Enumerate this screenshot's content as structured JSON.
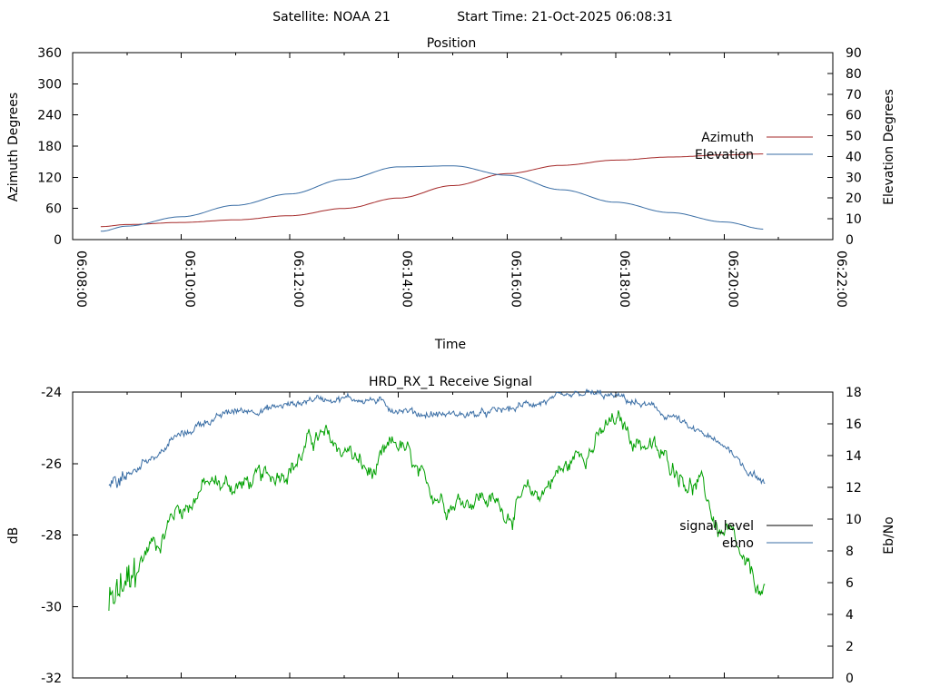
{
  "header": {
    "satellite": "Satellite: NOAA 21",
    "start_time": "Start Time: 21-Oct-2025 06:08:31"
  },
  "colors": {
    "azimuth": "#a52a2a",
    "elevation": "#3a6ea5",
    "signal_level": "#000000",
    "signal_trace": "#00a000",
    "ebno": "#3a6ea5"
  },
  "chart_data": [
    {
      "type": "line",
      "title": "Position",
      "xlabel": "Time",
      "ylabel": "Azimuth Degrees",
      "y2label": "Elevation Degrees",
      "xlim": [
        "06:08:00",
        "06:22:00"
      ],
      "ylim": [
        0,
        360
      ],
      "y2lim": [
        0,
        90
      ],
      "x_ticks": [
        "06:08:00",
        "06:10:00",
        "06:12:00",
        "06:14:00",
        "06:16:00",
        "06:18:00",
        "06:20:00",
        "06:22:00"
      ],
      "y_ticks": [
        "0",
        "60",
        "120",
        "180",
        "240",
        "300",
        "360"
      ],
      "y2_ticks": [
        "0",
        "10",
        "20",
        "30",
        "40",
        "50",
        "60",
        "70",
        "80",
        "90"
      ],
      "legend_position": "right",
      "x_time": [
        "06:08:31",
        "06:09:00",
        "06:10:00",
        "06:11:00",
        "06:12:00",
        "06:13:00",
        "06:14:00",
        "06:15:00",
        "06:16:00",
        "06:17:00",
        "06:18:00",
        "06:19:00",
        "06:20:00",
        "06:20:45"
      ],
      "series": [
        {
          "name": "Azimuth",
          "axis": "y",
          "values": [
            25,
            29,
            33,
            38,
            46,
            60,
            80,
            104,
            127,
            143,
            153,
            159,
            163,
            165
          ]
        },
        {
          "name": "Elevation",
          "axis": "y2",
          "values": [
            4,
            6.5,
            11,
            16.5,
            22,
            29,
            35,
            35.5,
            31,
            24,
            18,
            13,
            8.5,
            5
          ]
        }
      ]
    },
    {
      "type": "line",
      "title": "HRD_RX_1 Receive Signal",
      "ylabel": "dB",
      "y2label": "Eb/No",
      "ylim": [
        -32,
        -24
      ],
      "y2lim": [
        0,
        18
      ],
      "y_ticks": [
        "-32",
        "-30",
        "-28",
        "-26",
        "-24"
      ],
      "y2_ticks": [
        "0",
        "2",
        "4",
        "6",
        "8",
        "10",
        "12",
        "14",
        "16",
        "18"
      ],
      "x_tick_count": 7,
      "legend_position": "right",
      "x_range": [
        "06:08:00",
        "06:22:00"
      ],
      "x_time": [
        "06:08:40",
        "06:09:00",
        "06:09:30",
        "06:10:00",
        "06:10:30",
        "06:11:00",
        "06:11:30",
        "06:12:00",
        "06:12:30",
        "06:13:00",
        "06:13:30",
        "06:14:00",
        "06:14:30",
        "06:15:00",
        "06:15:30",
        "06:16:00",
        "06:16:30",
        "06:17:00",
        "06:17:30",
        "06:18:00",
        "06:18:30",
        "06:19:00",
        "06:19:30",
        "06:20:00",
        "06:20:30",
        "06:20:45"
      ],
      "series": [
        {
          "name": "signal_level",
          "axis": "y",
          "values": [
            -30,
            -29.4,
            -28.2,
            -27.2,
            -26.6,
            -26.6,
            -26.5,
            -26.0,
            -25.3,
            -25.6,
            -26.3,
            -25.5,
            -26.7,
            -27.0,
            -26.9,
            -27.3,
            -26.9,
            -26.2,
            -25.5,
            -24.9,
            -25.4,
            -26.0,
            -26.6,
            -28.0,
            -29.2,
            -29.8
          ]
        },
        {
          "name": "ebno",
          "axis": "y2",
          "values": [
            12.2,
            12.8,
            14.0,
            15.3,
            16.2,
            16.8,
            16.9,
            17.2,
            17.6,
            17.6,
            17.5,
            16.9,
            16.6,
            16.6,
            16.6,
            16.9,
            17.3,
            17.6,
            17.9,
            17.7,
            17.2,
            16.5,
            15.5,
            14.6,
            13.0,
            12.2
          ]
        }
      ]
    }
  ]
}
